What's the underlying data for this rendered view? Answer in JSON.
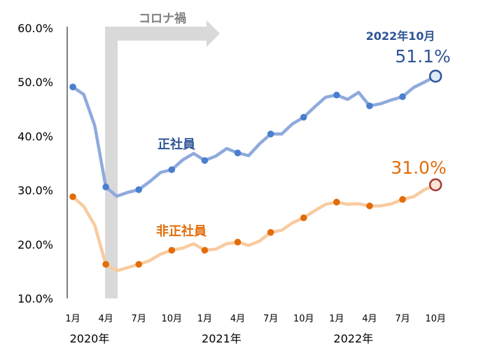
{
  "chart_data": {
    "type": "line",
    "title": "",
    "xlabel": "",
    "ylabel": "",
    "ylim": [
      10,
      60
    ],
    "y_ticks": [
      "60.0%",
      "50.0%",
      "40.0%",
      "30.0%",
      "20.0%",
      "10.0%"
    ],
    "y_tick_values": [
      60,
      50,
      40,
      30,
      20,
      10
    ],
    "grid": false,
    "x_tick_labels": [
      "1月",
      "4月",
      "7月",
      "10月",
      "1月",
      "4月",
      "7月",
      "10月",
      "1月",
      "4月",
      "7月",
      "10月"
    ],
    "year_labels": [
      "2020年",
      "2021年",
      "2022年"
    ],
    "months": [
      "2020-01",
      "2020-02",
      "2020-03",
      "2020-04",
      "2020-05",
      "2020-06",
      "2020-07",
      "2020-08",
      "2020-09",
      "2020-10",
      "2020-11",
      "2020-12",
      "2021-01",
      "2021-02",
      "2021-03",
      "2021-04",
      "2021-05",
      "2021-06",
      "2021-07",
      "2021-08",
      "2021-09",
      "2021-10",
      "2021-11",
      "2021-12",
      "2022-01",
      "2022-02",
      "2022-03",
      "2022-04",
      "2022-05",
      "2022-06",
      "2022-07",
      "2022-08",
      "2022-09",
      "2022-10"
    ],
    "series": [
      {
        "name": "正社員",
        "color": "#8faadc",
        "marker_color": "#4a7fcf",
        "label_color": "#2f5597",
        "values": [
          49.1,
          47.7,
          41.9,
          30.6,
          28.9,
          29.6,
          30.1,
          31.6,
          33.3,
          33.8,
          35.6,
          36.8,
          35.5,
          36.3,
          37.7,
          36.9,
          36.4,
          38.6,
          40.4,
          40.4,
          42.3,
          43.5,
          45.4,
          47.2,
          47.6,
          46.8,
          48.1,
          45.6,
          46.0,
          46.7,
          47.3,
          49.0,
          50.0,
          51.1
        ]
      },
      {
        "name": "非正社員",
        "color": "#f8cba0",
        "marker_color": "#e36c09",
        "label_color": "#e36c09",
        "values": [
          28.8,
          27.0,
          23.5,
          16.3,
          15.1,
          15.7,
          16.3,
          17.0,
          18.2,
          18.9,
          19.3,
          20.1,
          18.9,
          19.1,
          20.1,
          20.4,
          19.8,
          20.6,
          22.2,
          22.6,
          24.0,
          24.9,
          26.2,
          27.4,
          27.8,
          27.4,
          27.5,
          27.1,
          27.1,
          27.5,
          28.3,
          28.8,
          30.1,
          31.0
        ]
      }
    ],
    "annotations": {
      "covid_label": "コロナ禍",
      "covid_start_month": "2020-04",
      "shade_color": "#d9d9d9",
      "last_date_label": "2022年10月",
      "last_regular_label": "51.1%",
      "last_nonregular_label": "31.0%"
    }
  }
}
